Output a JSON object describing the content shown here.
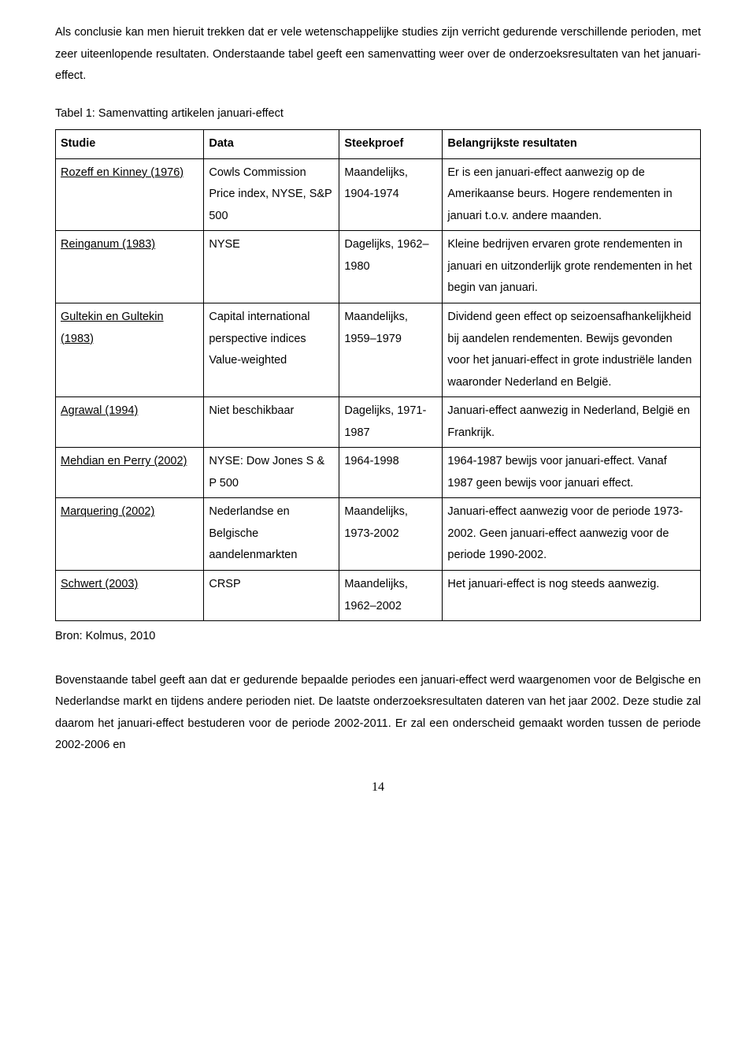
{
  "intro": "Als conclusie kan men hieruit trekken dat er vele wetenschappelijke studies zijn verricht gedurende verschillende perioden, met zeer uiteenlopende resultaten. Onderstaande tabel geeft een samenvatting weer over de onderzoeksresultaten van het januari-effect.",
  "table_caption": "Tabel 1: Samenvatting artikelen januari-effect",
  "table": {
    "headers": [
      "Studie",
      "Data",
      "Steekproef",
      "Belangrijkste resultaten"
    ],
    "rows": [
      {
        "study": "Rozeff en Kinney (1976)",
        "data": "Cowls Commission Price index, NYSE, S&P 500",
        "sample": "Maandelijks, 1904-1974",
        "result": "Er is een januari-effect aanwezig op de Amerikaanse beurs. Hogere rendementen in januari t.o.v. andere maanden."
      },
      {
        "study": "Reinganum (1983)",
        "data": "NYSE",
        "sample": "Dagelijks, 1962–1980",
        "result": "Kleine bedrijven ervaren grote rendementen in januari en uitzonderlijk grote rendementen in het begin van januari."
      },
      {
        "study": "Gultekin en Gultekin (1983)",
        "data": "Capital international perspective indices Value-weighted",
        "sample": "Maandelijks, 1959–1979",
        "result": "Dividend geen effect op seizoensafhankelijkheid bij aandelen rendementen. Bewijs gevonden voor het januari-effect in grote industriële landen waaronder Nederland en België."
      },
      {
        "study": "Agrawal (1994)",
        "data": "Niet beschikbaar",
        "sample": "Dagelijks, 1971-1987",
        "result": "Januari-effect aanwezig in Nederland, België en Frankrijk."
      },
      {
        "study": "Mehdian en Perry (2002)",
        "data": "NYSE: Dow Jones S & P 500",
        "sample": "1964-1998",
        "result": "1964-1987 bewijs voor januari-effect. Vanaf 1987 geen bewijs voor januari effect."
      },
      {
        "study": "Marquering (2002)",
        "data": "Nederlandse en Belgische aandelenmarkten",
        "sample": "Maandelijks, 1973-2002",
        "result": "Januari-effect aanwezig voor de periode 1973-2002. Geen januari-effect aanwezig voor de periode 1990-2002."
      },
      {
        "study": "Schwert (2003)",
        "data": "CRSP",
        "sample": "Maandelijks, 1962–2002",
        "result": "Het januari-effect is nog steeds aanwezig."
      }
    ]
  },
  "source": "Bron: Kolmus, 2010",
  "outro": "Bovenstaande tabel geeft aan dat er gedurende bepaalde periodes een januari-effect werd waargenomen voor de Belgische en Nederlandse markt en tijdens andere perioden niet. De laatste onderzoeksresultaten dateren van het jaar 2002. Deze studie zal daarom het januari-effect bestuderen voor de periode 2002-2011. Er zal een onderscheid gemaakt worden tussen de periode 2002-2006 en",
  "page_number": "14"
}
